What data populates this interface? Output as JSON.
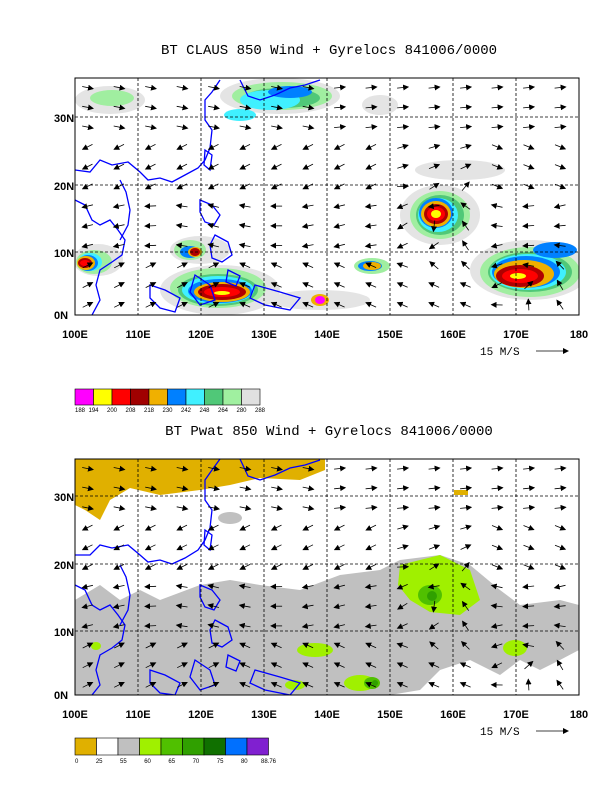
{
  "charts": [
    {
      "title": "BT CLAUS 850 Wind + Gyrelocs 841006/0000",
      "xticks": [
        "100E",
        "110E",
        "120E",
        "130E",
        "140E",
        "150E",
        "160E",
        "170E",
        "180"
      ],
      "yticks": [
        "0N",
        "10N",
        "20N",
        "30N"
      ],
      "ref_vector": "15 M/S",
      "colorbar_colors": [
        "#ff00ff",
        "#ffff00",
        "#ff0000",
        "#a00000",
        "#f0b000",
        "#0080ff",
        "#40f0ff",
        "#50c878",
        "#a0f0a0",
        "#e0e0e0"
      ],
      "colorbar_labels": [
        "188",
        "194",
        "200",
        "208",
        "218",
        "230",
        "242",
        "248",
        "264",
        "280",
        "288"
      ]
    },
    {
      "title": "BT Pwat 850 Wind + Gyrelocs 841006/0000",
      "xticks": [
        "100E",
        "110E",
        "120E",
        "130E",
        "140E",
        "150E",
        "160E",
        "170E",
        "180"
      ],
      "yticks": [
        "0N",
        "10N",
        "20N",
        "30N"
      ],
      "ref_vector": "15 M/S",
      "colorbar_colors": [
        "#e0b000",
        "#ffffff",
        "#c0c0c0",
        "#a0f000",
        "#50c000",
        "#30a000",
        "#107000",
        "#0070ff",
        "#8020d0"
      ],
      "colorbar_labels": [
        "0",
        "25",
        "55",
        "60",
        "65",
        "70",
        "75",
        "80",
        "88.76"
      ]
    }
  ],
  "chart_data": [
    {
      "type": "heatmap",
      "title": "BT CLAUS 850 Wind + Gyrelocs 841006/0000",
      "xlim": [
        100,
        180
      ],
      "ylim": [
        0,
        35
      ],
      "color_levels": [
        188,
        194,
        200,
        208,
        218,
        230,
        242,
        248,
        264,
        280,
        288
      ],
      "features": [
        {
          "lon": 158,
          "lat": 14,
          "level": 200
        },
        {
          "lon": 172,
          "lat": 6,
          "level": 200
        },
        {
          "lon": 124,
          "lat": 4,
          "level": 200
        },
        {
          "lon": 102,
          "lat": 8,
          "level": 200
        },
        {
          "lon": 140,
          "lat": 2,
          "level": 194
        },
        {
          "lon": 134,
          "lat": 32,
          "level": 242
        }
      ]
    },
    {
      "type": "heatmap",
      "title": "BT Pwat 850 Wind + Gyrelocs 841006/0000",
      "xlim": [
        100,
        180
      ],
      "ylim": [
        0,
        35
      ],
      "color_levels": [
        0,
        25,
        55,
        60,
        65,
        70,
        75,
        80,
        88.76
      ],
      "features": [
        {
          "lon": 158,
          "lat": 16,
          "level": 65
        },
        {
          "lon": 150,
          "lat": 2,
          "level": 70
        },
        {
          "lon": 140,
          "lat": 4,
          "level": 60
        },
        {
          "lon": 170,
          "lat": 7,
          "level": 60
        },
        {
          "lon": 112,
          "lat": 33,
          "level": 0
        }
      ]
    }
  ]
}
